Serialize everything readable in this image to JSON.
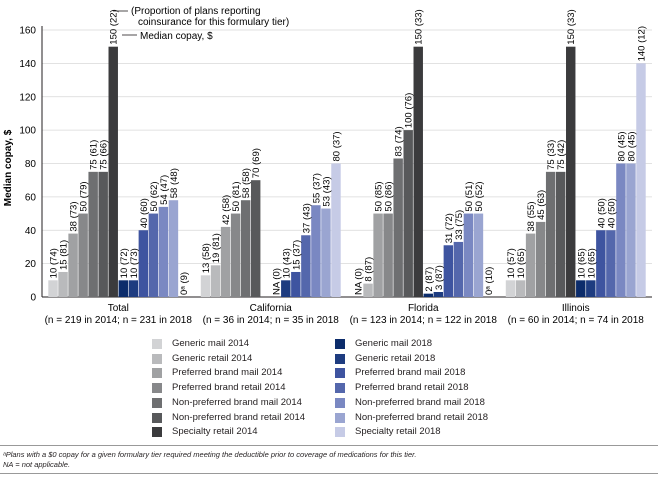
{
  "chart_data": {
    "type": "bar",
    "ylabel": "Median copay, $",
    "ylim": [
      0,
      160
    ],
    "yticks": [
      0,
      20,
      40,
      60,
      80,
      100,
      120,
      140,
      160
    ],
    "categories": [
      "Total",
      "California",
      "Florida",
      "Illinois"
    ],
    "category_sublabels": [
      "(n = 219 in 2014; n = 231 in 2018",
      "(n = 36 in 2014; n = 35 in 2018",
      "(n = 123 in 2014; n = 122 in 2018",
      "(n = 60 in 2014; n = 74 in 2018"
    ],
    "series": [
      {
        "name": "Generic mail 2014",
        "color": "#d2d3d5",
        "values": [
          10,
          13,
          null,
          10
        ],
        "labels": [
          "10 (74)",
          "13 (58)",
          "NA (0)",
          "10 (57)"
        ]
      },
      {
        "name": "Generic retail 2014",
        "color": "#b9babc",
        "values": [
          15,
          19,
          8,
          10
        ],
        "labels": [
          "15 (81)",
          "19 (81)",
          "8 (87)",
          "10 (65)"
        ]
      },
      {
        "name": "Preferred brand mail 2014",
        "color": "#a0a1a3",
        "values": [
          38,
          42,
          50,
          38
        ],
        "labels": [
          "38 (73)",
          "42 (58)",
          "50 (85)",
          "38 (55)"
        ]
      },
      {
        "name": "Preferred brand retail 2014",
        "color": "#87888a",
        "values": [
          50,
          50,
          50,
          45
        ],
        "labels": [
          "50 (79)",
          "50 (81)",
          "50 (86)",
          "45 (63)"
        ]
      },
      {
        "name": "Non-preferred brand mail 2014",
        "color": "#6e6f71",
        "values": [
          75,
          58,
          83,
          75
        ],
        "labels": [
          "75 (61)",
          "58 (58)",
          "83 (74)",
          "75 (33)"
        ]
      },
      {
        "name": "Non-preferred brand retail 2014",
        "color": "#58595b",
        "values": [
          75,
          70,
          100,
          75
        ],
        "labels": [
          "75 (66)",
          "70 (69)",
          "100 (76)",
          "75 (42)"
        ]
      },
      {
        "name": "Specialty retail 2014",
        "color": "#3b3b3d",
        "values": [
          150,
          null,
          150,
          150
        ],
        "labels": [
          "150 (22)",
          "",
          "150 (33)",
          "150 (33)"
        ]
      },
      {
        "name": "Generic mail 2018",
        "color": "#0c2c6b",
        "values": [
          10,
          null,
          2,
          10
        ],
        "labels": [
          "10 (72)",
          "NA (0)",
          "2 (87)",
          "10 (65)"
        ]
      },
      {
        "name": "Generic retail 2018",
        "color": "#1e3c80",
        "values": [
          10,
          10,
          3,
          10
        ],
        "labels": [
          "10 (73)",
          "10 (43)",
          "3 (87)",
          "10 (65)"
        ]
      },
      {
        "name": "Preferred brand mail 2018",
        "color": "#3e54a0",
        "values": [
          40,
          15,
          31,
          40
        ],
        "labels": [
          "40 (60)",
          "15 (37)",
          "31 (72)",
          "40 (50)"
        ]
      },
      {
        "name": "Preferred brand retail 2018",
        "color": "#5467ac",
        "values": [
          50,
          37,
          33,
          40
        ],
        "labels": [
          "50 (62)",
          "37 (43)",
          "33 (75)",
          "40 (50)"
        ]
      },
      {
        "name": "Non-preferred brand mail 2018",
        "color": "#7a88c2",
        "values": [
          54,
          55,
          50,
          80
        ],
        "labels": [
          "54 (47)",
          "55 (37)",
          "50 (51)",
          "80 (45)"
        ]
      },
      {
        "name": "Non-preferred brand retail 2018",
        "color": "#9aa5d1",
        "values": [
          58,
          53,
          50,
          80
        ],
        "labels": [
          "58 (48)",
          "53 (43)",
          "50 (52)",
          "80 (45)"
        ]
      },
      {
        "name": "Specialty retail 2018",
        "color": "#c6cbe6",
        "values": [
          0,
          80,
          0,
          140
        ],
        "labels": [
          "0ᵃ (9)",
          "80 (37)",
          "0ᵃ (10)",
          "140 (12)"
        ]
      }
    ],
    "annotations": [
      "(Proportion of plans reporting\ncoinsurance for this formulary tier)",
      "Median copay, $"
    ]
  },
  "annotation_proportion": "(Proportion of plans reporting coinsurance for this formulary tier)",
  "annotation_proportion_line1": "(Proportion of plans reporting",
  "annotation_proportion_line2": "coinsurance for this formulary tier)",
  "annotation_median": "Median copay, $",
  "legend_left": [
    "Generic mail 2014",
    "Generic retail 2014",
    "Preferred brand mail 2014",
    "Preferred brand retail 2014",
    "Non-preferred brand mail 2014",
    "Non-preferred brand retail 2014",
    "Specialty retail 2014"
  ],
  "legend_right": [
    "Generic mail 2018",
    "Generic retail 2018",
    "Preferred brand mail 2018",
    "Preferred brand retail 2018",
    "Non-preferred brand mail 2018",
    "Non-preferred brand retail 2018",
    "Specialty retail 2018"
  ],
  "footnote_a": "ᵃPlans with a $0 copay for a given formulary tier required meeting the deductible prior to coverage of medications for this tier.",
  "footnote_na": "NA = not applicable."
}
